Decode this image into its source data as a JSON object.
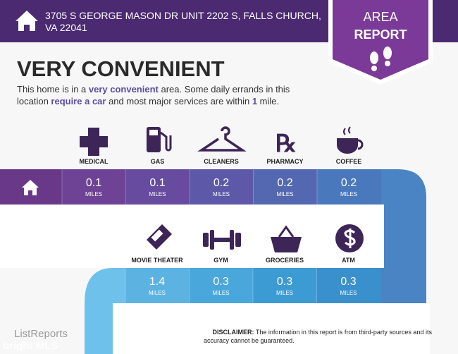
{
  "header": {
    "address_line1": "3705 S GEORGE MASON DR UNIT 2202 S, FALLS CHURCH,",
    "address_line2": "VA 22041"
  },
  "badge": {
    "line1": "AREA",
    "line2": "REPORT"
  },
  "title": "VERY CONVENIENT",
  "description": {
    "line1": [
      "This home is in a ",
      "very convenient",
      " area. Some daily errands in this"
    ],
    "line2": [
      "location ",
      "require a car",
      " and most major services are within ",
      "1",
      " mile."
    ]
  },
  "unit": "MILES",
  "row1": [
    {
      "name": "MEDICAL",
      "distance": "0.1"
    },
    {
      "name": "GAS",
      "distance": "0.1"
    },
    {
      "name": "CLEANERS",
      "distance": "0.2"
    },
    {
      "name": "PHARMACY",
      "distance": "0.2"
    },
    {
      "name": "COFFEE",
      "distance": "0.2"
    }
  ],
  "row2": [
    {
      "name": "MOVIE THEATER",
      "distance": "1.4"
    },
    {
      "name": "GYM",
      "distance": "0.3"
    },
    {
      "name": "GROCERIES",
      "distance": "0.3"
    },
    {
      "name": "ATM",
      "distance": "0.3"
    }
  ],
  "footer": {
    "logo": "ListReports",
    "disclaimer_label": "DISCLAIMER:",
    "disclaimer_line1": " The information in this report is from third-party sources and its",
    "disclaimer_line2": "accuracy cannot be guaranteed.",
    "watermark": "bright MLS"
  }
}
